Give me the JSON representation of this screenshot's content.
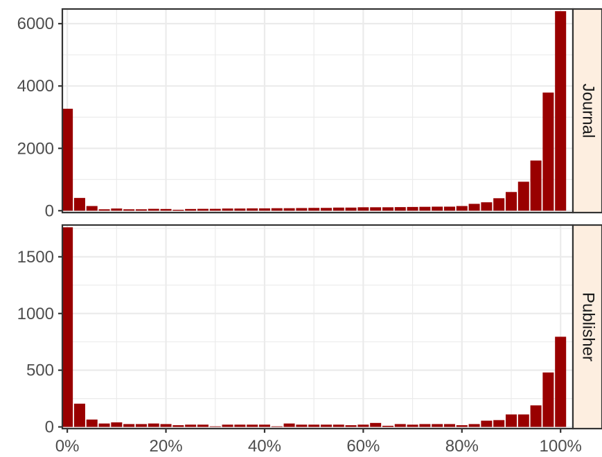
{
  "chart_data": {
    "type": "bar",
    "facet_orientation": "vertical",
    "strip_position": "right",
    "grid": true,
    "xlabel": "",
    "ylabel": "",
    "x_ticks": [
      0,
      0.2,
      0.4,
      0.6,
      0.8,
      1.0
    ],
    "x_tick_labels": [
      "0%",
      "20%",
      "40%",
      "60%",
      "80%",
      "100%"
    ],
    "xlim": [
      -0.01,
      1.025
    ],
    "bin_centers": [
      0.0,
      0.025,
      0.05,
      0.075,
      0.1,
      0.125,
      0.15,
      0.175,
      0.2,
      0.225,
      0.25,
      0.275,
      0.3,
      0.325,
      0.35,
      0.375,
      0.4,
      0.425,
      0.45,
      0.475,
      0.5,
      0.525,
      0.55,
      0.575,
      0.6,
      0.625,
      0.65,
      0.675,
      0.7,
      0.725,
      0.75,
      0.775,
      0.8,
      0.825,
      0.85,
      0.875,
      0.9,
      0.925,
      0.95,
      0.975,
      1.0
    ],
    "colors": {
      "bar": "#990000",
      "strip_fill": "#fdeee0",
      "grid": "#ebebeb",
      "frame": "#333333"
    },
    "panels": [
      {
        "strip": "Journal",
        "ylim": [
          -60,
          6470
        ],
        "y_ticks": [
          0,
          2000,
          4000,
          6000
        ],
        "y_tick_labels": [
          "0",
          "2000",
          "4000",
          "6000"
        ],
        "values": [
          3270,
          410,
          150,
          45,
          70,
          45,
          45,
          60,
          55,
          30,
          55,
          60,
          60,
          70,
          70,
          75,
          75,
          80,
          80,
          85,
          90,
          90,
          100,
          100,
          110,
          110,
          110,
          115,
          120,
          125,
          130,
          130,
          150,
          220,
          270,
          400,
          600,
          930,
          1610,
          3790,
          6400
        ]
      },
      {
        "strip": "Publisher",
        "ylim": [
          -15,
          1780
        ],
        "y_ticks": [
          0,
          500,
          1000,
          1500
        ],
        "y_tick_labels": [
          "0",
          "500",
          "1000",
          "1500"
        ],
        "values": [
          1760,
          205,
          65,
          30,
          40,
          25,
          25,
          30,
          25,
          15,
          20,
          20,
          5,
          20,
          20,
          20,
          20,
          5,
          30,
          20,
          20,
          20,
          20,
          15,
          20,
          35,
          10,
          25,
          20,
          25,
          25,
          25,
          15,
          25,
          55,
          60,
          110,
          110,
          190,
          480,
          795
        ]
      }
    ]
  }
}
